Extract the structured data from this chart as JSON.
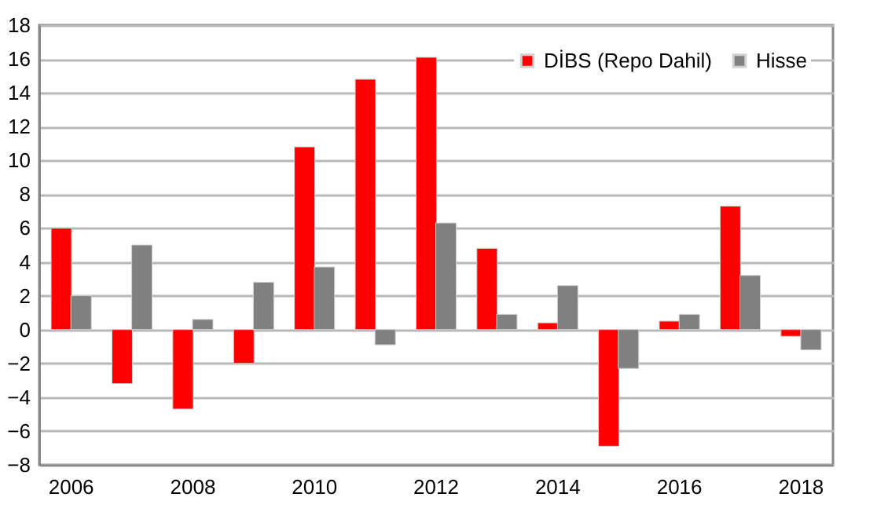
{
  "chart_data": {
    "type": "bar",
    "categories": [
      "2006",
      null,
      "2008",
      null,
      "2010",
      null,
      "2012",
      null,
      "2014",
      null,
      "2016",
      null,
      "2018"
    ],
    "series": [
      {
        "name": "DİBS (Repo Dahil)",
        "color": "#ff0000",
        "values": [
          6.0,
          -3.2,
          -4.7,
          -2.0,
          10.8,
          14.8,
          16.1,
          4.8,
          0.4,
          -6.9,
          0.5,
          7.3,
          -0.4
        ]
      },
      {
        "name": "Hisse",
        "color": "#808080",
        "values": [
          2.0,
          5.0,
          0.6,
          2.8,
          3.7,
          -0.9,
          6.3,
          0.9,
          2.6,
          -2.3,
          0.9,
          3.2,
          -1.2
        ]
      }
    ],
    "ylim": [
      -8,
      18
    ],
    "yticks": [
      -8,
      -6,
      -4,
      -2,
      0,
      2,
      4,
      6,
      8,
      10,
      12,
      14,
      16,
      18
    ],
    "grid": "y",
    "legend": "top right"
  }
}
